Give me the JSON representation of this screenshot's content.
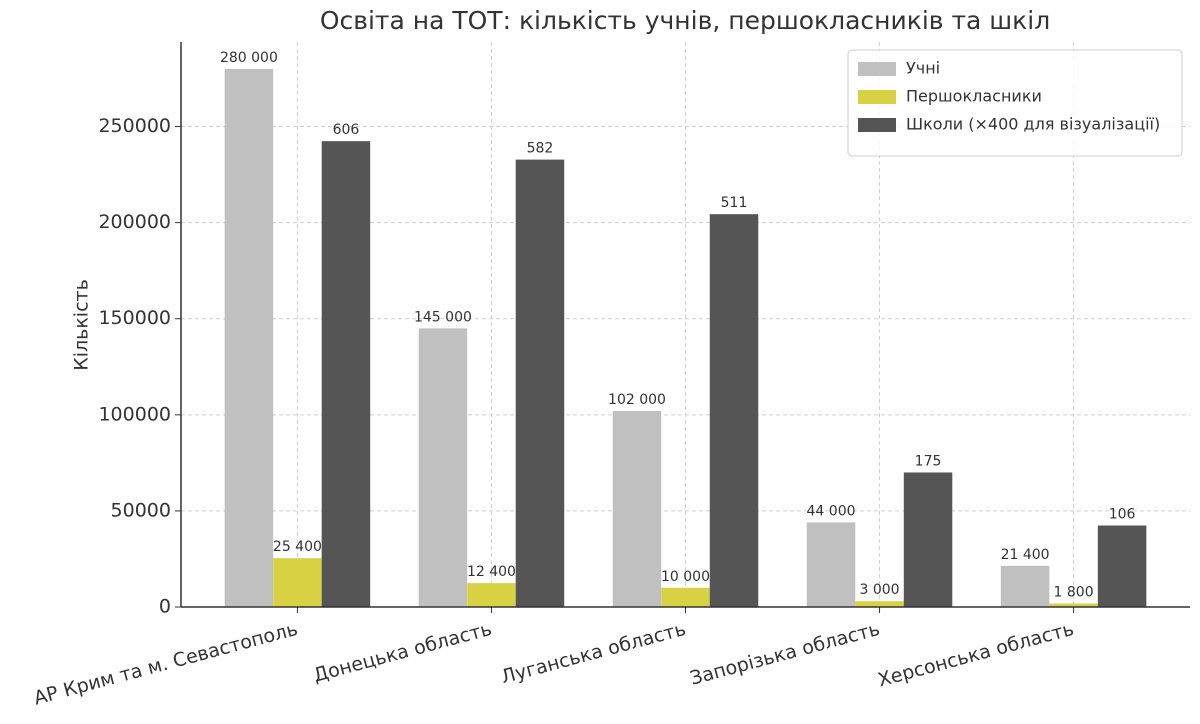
{
  "chart_data": {
    "type": "bar",
    "title": "Освіта на ТОТ: кількість учнів, першокласників та шкіл",
    "y_label": "Кількість",
    "categories": [
      "АР Крим та м. Севастополь",
      "Донецька область",
      "Луганська область",
      "Запорізька область",
      "Херсонська область"
    ],
    "series": [
      {
        "name": "Учні",
        "color": "#c0c0c0",
        "values": [
          280000,
          145000,
          102000,
          44000,
          21400
        ],
        "value_labels": [
          "280 000",
          "145 000",
          "102 000",
          "44 000",
          "21 400"
        ]
      },
      {
        "name": "Першокласники",
        "color": "#d8d143",
        "values": [
          25400,
          12400,
          10000,
          3000,
          1800
        ],
        "value_labels": [
          "25 400",
          "12 400",
          "10 000",
          "3 000",
          "1 800"
        ]
      },
      {
        "name": "Школи (×400 для візуалізації)",
        "color": "#555555",
        "values": [
          242400,
          232800,
          204400,
          70000,
          42400
        ],
        "value_labels": [
          "606",
          "582",
          "511",
          "175",
          "106"
        ]
      }
    ],
    "ylim": [
      0,
      294000
    ],
    "yticks": [
      0,
      50000,
      100000,
      150000,
      200000,
      250000
    ],
    "grid": true,
    "legend": "upper right"
  }
}
